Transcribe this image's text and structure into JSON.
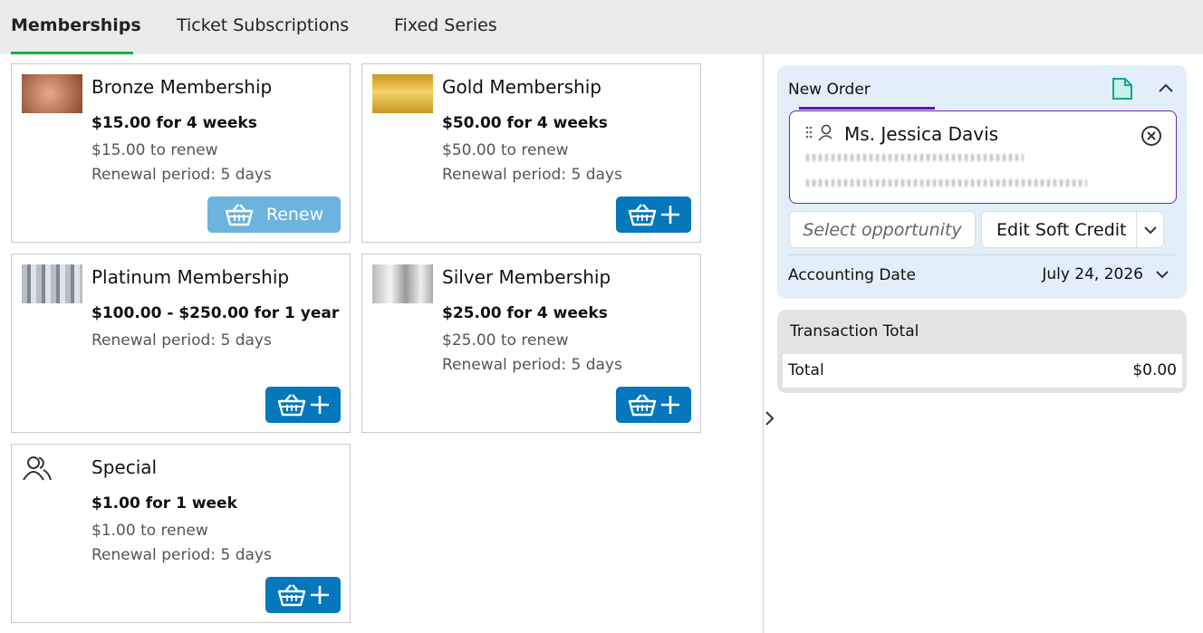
{
  "tabs": [
    "Memberships",
    "Ticket Subscriptions",
    "Fixed Series"
  ],
  "memberships": [
    {
      "name": "Bronze Membership",
      "price": "$15.00 for 4 weeks",
      "renew_price": "$15.00 to renew",
      "renewal_period": "Renewal period: 5 days",
      "button": "Renew"
    },
    {
      "name": "Gold Membership",
      "price": "$50.00 for 4 weeks",
      "renew_price": "$50.00 to renew",
      "renewal_period": "Renewal period: 5 days"
    },
    {
      "name": "Platinum Membership",
      "price": "$100.00 - $250.00 for 1 year",
      "renewal_period": "Renewal period: 5 days"
    },
    {
      "name": "Silver Membership",
      "price": "$25.00 for 4 weeks",
      "renew_price": "$25.00 to renew",
      "renewal_period": "Renewal period: 5 days"
    },
    {
      "name": "Special",
      "price": "$1.00 for 1 week",
      "renew_price": "$1.00 to renew",
      "renewal_period": "Renewal period: 5 days"
    }
  ],
  "order": {
    "title": "New Order",
    "customer": "Ms. Jessica Davis",
    "opportunity": "Select opportunity",
    "soft_credit": "Edit Soft Credit",
    "accounting_date_label": "Accounting Date",
    "accounting_date": "July 24, 2026"
  },
  "transaction": {
    "title": "Transaction Total",
    "total_label": "Total",
    "total": "$0.00"
  }
}
